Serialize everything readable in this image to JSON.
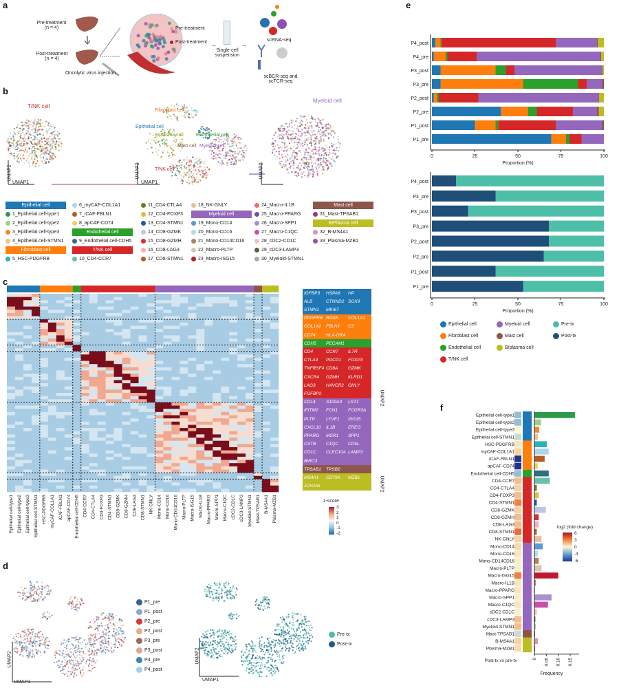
{
  "panel_labels": {
    "a": "a",
    "b": "b",
    "c": "c",
    "d": "d",
    "e": "e",
    "f": "f"
  },
  "colors": {
    "categories": {
      "Epithelial cell": "#1f77b4",
      "Fibroblast cell": "#ff7f0e",
      "Endothelial cell": "#2ca02c",
      "T/NK cell": "#d62728",
      "Myeloid cell": "#9467bd",
      "Mast cell": "#8c564b",
      "B/plasma cell": "#bcbd22"
    },
    "pre_tx": "#4dbfa8",
    "post_tx": "#1f4e79"
  },
  "panel_a": {
    "pre_treatment": "Pre-treatment",
    "pre_n": "(n = 4)",
    "post_treatment": "Post-treatment",
    "post_n": "(n = 4)",
    "injection": "Oncolytic virus injection",
    "legend_pre": "Pre-treatment",
    "legend_post": "Post-treatment",
    "suspension": "Single-cell suspension",
    "scrna": "scRNA-seq",
    "scbcr": "scBCR-seq and scTCR-seq"
  },
  "panel_b": {
    "tnk": "T/NK cell",
    "fibroblast": "Fibroblast cell",
    "epithelial": "Epithelial cell",
    "endothelial": "Endothelial cell",
    "bplasma": "B/plasma cell",
    "mast": "Mast cell",
    "myeloid": "Myeloid cell",
    "umap1": "UMAP1",
    "umap2": "UMAP2"
  },
  "legend": {
    "headers": {
      "epithelial": "Epithelial cell",
      "fibroblast": "Fibroblast cell",
      "endothelial": "Endothelial cell",
      "tnk": "T/NK cell",
      "myeloid": "Myeloid cell",
      "mast": "Mast cell",
      "bplasma": "B/Plasma cell"
    },
    "clusters": [
      {
        "label": "1_Epithelial cell-type1",
        "color": "#2e9a4a"
      },
      {
        "label": "2_Epithelial cell-type2",
        "color": "#9fd08a"
      },
      {
        "label": "3_Epithelial cell-type3",
        "color": "#f08a2a"
      },
      {
        "label": "4_Epithelial cell-STMN1",
        "color": "#f0c090"
      },
      {
        "label": "5_HSC-PDGFRB",
        "color": "#2bb0c0"
      },
      {
        "label": "6_myCAF-COL1A1",
        "color": "#a8d8ea"
      },
      {
        "label": "7_iCAF-FBLN1",
        "color": "#b85a22"
      },
      {
        "label": "8_apCAF-CD74",
        "color": "#f0d060"
      },
      {
        "label": "9_Endothelial cell-CDH5",
        "color": "#2f6e80"
      },
      {
        "label": "10_CD4-CCR7",
        "color": "#6bbfa8"
      },
      {
        "label": "11_CD4-CTLA4",
        "color": "#6f7a2a"
      },
      {
        "label": "12_CD4-FOXP3",
        "color": "#d8c040"
      },
      {
        "label": "13_CD4-STMN1",
        "color": "#2158a8"
      },
      {
        "label": "14_CD8-GZMK",
        "color": "#b8c8e8"
      },
      {
        "label": "15_CD8-GZMH",
        "color": "#d83030"
      },
      {
        "label": "16_CD8-LAG3",
        "color": "#f4b0b8"
      },
      {
        "label": "17_CD8-STMN1",
        "color": "#b06030"
      },
      {
        "label": "18_NK-GNLY",
        "color": "#e8c098"
      },
      {
        "label": "19_Mono-CD14",
        "color": "#5a9ad0"
      },
      {
        "label": "20_Mono-CD16",
        "color": "#b0dcef"
      },
      {
        "label": "21_Mono-CD14CD16",
        "color": "#b08058"
      },
      {
        "label": "22_Macro-PLTP",
        "color": "#d8c8b0"
      },
      {
        "label": "23_Macro-ISG15",
        "color": "#c01830"
      },
      {
        "label": "24_Macro-IL1B",
        "color": "#e87070"
      },
      {
        "label": "25_Macro-PPARG",
        "color": "#7050a8"
      },
      {
        "label": "26_Macro-SPP1",
        "color": "#a890d0"
      },
      {
        "label": "27_Macro-C1QC",
        "color": "#c850a8"
      },
      {
        "label": "28_cDC2-CD1C",
        "color": "#f0c0d0"
      },
      {
        "label": "29_cDC3-LAMP3",
        "color": "#5a6030"
      },
      {
        "label": "30_Myeloid-STMN1",
        "color": "#b8a898"
      },
      {
        "label": "31_Mast-TPSAB1",
        "color": "#9a3a7a"
      },
      {
        "label": "32_B-MS4A1",
        "color": "#d898b8"
      },
      {
        "label": "33_Plasma-MZB1",
        "color": "#9a50a8"
      }
    ]
  },
  "panel_c": {
    "columns": [
      "Epithelial cell-type1",
      "Epithelial cell-type2",
      "Epithelial cell-type3",
      "Epithelial cell-STMN1",
      "HSC-PDGFRB",
      "myCAF-COL1A1",
      "iCAF-FBLN1",
      "apCAF-CD74",
      "Endothelial cell-CDH5",
      "CD4-CCR7",
      "CD4-CTLA4",
      "CD4-FOXP3",
      "CD4-STMN1",
      "CD8-GZMK",
      "CD8-GZMH",
      "CD8-LAG3",
      "CD8-STMN1",
      "NK-GNLY",
      "Mono-CD14",
      "Mono-CD16",
      "Mono-CD14CD16",
      "Macro-PLTP",
      "Macro-ISG15",
      "Macro-IL1B",
      "Macro-PPARG",
      "Macro-SPP1",
      "Macro-C1QC",
      "cDC2-CD1C",
      "cDC3-LAMP3",
      "Myeloid-STMN1",
      "Mast-TPSAB1",
      "B-MS4A1",
      "Plasma-MZB1"
    ],
    "column_categories": [
      "Epithelial cell",
      "Epithelial cell",
      "Epithelial cell",
      "Epithelial cell",
      "Fibroblast cell",
      "Fibroblast cell",
      "Fibroblast cell",
      "Fibroblast cell",
      "Endothelial cell",
      "T/NK cell",
      "T/NK cell",
      "T/NK cell",
      "T/NK cell",
      "T/NK cell",
      "T/NK cell",
      "T/NK cell",
      "T/NK cell",
      "T/NK cell",
      "Myeloid cell",
      "Myeloid cell",
      "Myeloid cell",
      "Myeloid cell",
      "Myeloid cell",
      "Myeloid cell",
      "Myeloid cell",
      "Myeloid cell",
      "Myeloid cell",
      "Myeloid cell",
      "Myeloid cell",
      "Myeloid cell",
      "Mast cell",
      "B/plasma cell",
      "B/plasma cell"
    ],
    "gene_groups": [
      {
        "category": "Epithelial cell",
        "genes": [
          "IGFBP3",
          "HSPA6",
          "HP",
          "ALB",
          "CTNND2",
          "SOX9",
          "STMN1",
          "MKI67"
        ]
      },
      {
        "category": "Fibroblast cell",
        "genes": [
          "PDGFRB",
          "RGS5",
          "COL1A1",
          "COL1A2",
          "FBLN1",
          "C3",
          "CD74",
          "HLA-DRA"
        ]
      },
      {
        "category": "Endothelial cell",
        "genes": [
          "CDH5",
          "PECAM1"
        ]
      },
      {
        "category": "T/NK cell",
        "genes": [
          "CD4",
          "CCR7",
          "IL7R",
          "CTLA4",
          "PDCD1",
          "FOXP3",
          "TNFRSF4",
          "CD8A",
          "GZMK",
          "CXCR4",
          "GZMH",
          "KLRD1",
          "LAG3",
          "HAVCR2",
          "GNLY",
          "FGFBP2"
        ]
      },
      {
        "category": "Myeloid cell",
        "genes": [
          "CD14",
          "S100A9",
          "LST1",
          "IFITM2",
          "FCN1",
          "FCGR3A",
          "PLTP",
          "LYVE1",
          "ISG15",
          "CXCL10",
          "IL1B",
          "EREG",
          "PPARG",
          "MSR1",
          "SPP1",
          "CSTB",
          "C1QC",
          "CD5L",
          "CD1C",
          "CLEC10A",
          "LAMP3",
          "BIRC3"
        ]
      },
      {
        "category": "Mast cell",
        "genes": [
          "TPSAB1",
          "TPSB2"
        ]
      },
      {
        "category": "B/plasma cell",
        "genes": [
          "MS4A1",
          "CD79A",
          "MZB1",
          "JCHAIN"
        ]
      }
    ],
    "zscore_title": "z-score",
    "zscore_ticks": [
      "3",
      "2",
      "1",
      "0",
      "-1",
      "-2"
    ],
    "umap2_a": "UMAP2",
    "umap2_b": "UMAP2"
  },
  "panel_d": {
    "samples": [
      {
        "label": "P1_pre",
        "color": "#3b5f9a"
      },
      {
        "label": "P1_post",
        "color": "#8fa8d0"
      },
      {
        "label": "P2_pre",
        "color": "#d8383a"
      },
      {
        "label": "P2_post",
        "color": "#f0a888"
      },
      {
        "label": "P3_pre",
        "color": "#9a6a58"
      },
      {
        "label": "P3_post",
        "color": "#d8a898"
      },
      {
        "label": "P4_pre",
        "color": "#3a84b8"
      },
      {
        "label": "P4_post",
        "color": "#a8d0e8"
      }
    ],
    "groups": [
      {
        "label": "Pre-tx",
        "color": "#4dbfa8"
      },
      {
        "label": "Post-tx",
        "color": "#1f5a88"
      }
    ],
    "umap1": "UMAP1",
    "umap2": "UMAP2"
  },
  "chart_data": [
    {
      "type": "bar",
      "orientation": "horizontal",
      "stacked": true,
      "categories": [
        "P4_post",
        "P4_pre",
        "P3_post",
        "P3_pre",
        "P2_post",
        "P2_pre",
        "P1_post",
        "P1_pre"
      ],
      "series": [
        {
          "name": "Epithelial cell",
          "values": [
            2,
            1,
            5,
            5,
            1,
            40,
            25,
            69.5
          ]
        },
        {
          "name": "Fibroblast cell",
          "values": [
            3,
            7,
            32,
            48,
            2,
            16,
            12,
            8.5
          ]
        },
        {
          "name": "Endothelial cell",
          "values": [
            0.5,
            1,
            6,
            32,
            1,
            5,
            1.5,
            2
          ]
        },
        {
          "name": "T/NK cell",
          "values": [
            66.5,
            17,
            5,
            5,
            23,
            21,
            33.5,
            7
          ]
        },
        {
          "name": "Myeloid cell",
          "values": [
            24,
            72,
            51,
            9,
            70,
            14,
            27,
            13
          ]
        },
        {
          "name": "Mast cell",
          "values": [
            0.5,
            0.5,
            0.3,
            1,
            0.2,
            1,
            1,
            0
          ]
        },
        {
          "name": "B/plasma cell",
          "values": [
            3.5,
            1.5,
            0.7,
            0,
            2.8,
            3,
            0,
            0
          ]
        }
      ],
      "xlabel": "Proportion (%)",
      "xlim": [
        0,
        100
      ],
      "xticks": [
        "0",
        "25",
        "50",
        "75",
        "100"
      ]
    },
    {
      "type": "bar",
      "orientation": "horizontal",
      "stacked": true,
      "categories": [
        "P4_post",
        "P4_pre",
        "P3_post",
        "P3_pre",
        "P2_post",
        "P2_pre",
        "P1_post",
        "P1_pre"
      ],
      "series": [
        {
          "name": "Post-tx",
          "values": [
            14,
            37,
            21,
            68,
            68,
            65,
            37,
            53
          ]
        },
        {
          "name": "Pre-tx",
          "values": [
            86,
            63,
            79,
            32,
            32,
            35,
            63,
            47
          ]
        }
      ],
      "xlabel": "Proportion (%)",
      "xlim": [
        0,
        100
      ],
      "xticks": [
        "0",
        "25",
        "50",
        "75",
        "100"
      ],
      "legend": [
        "Epithelial cell",
        "Fibroblast cell",
        "Endothelial cell",
        "T/NK cell",
        "Myeloid cell",
        "Mast cell",
        "B/plasma cell",
        "Pre-tx",
        "Post-tx"
      ],
      "legend_position": "bottom"
    },
    {
      "type": "bar",
      "orientation": "horizontal",
      "categories": [
        "Epithelial cell-type1",
        "Epithelial cell-type2",
        "Epithelial cell-type3",
        "Epithelial cell-STMN1",
        "HSC-PDGFRB",
        "myCAF-COL1A1",
        "iCAF-FBLN1",
        "apCAF-CD74",
        "Endothelial cell-CDH5",
        "CD4-CCR7",
        "CD4-CTLA4",
        "CD4-FOXP3",
        "CD4-STMN1",
        "CD8-GZMK",
        "CD8-GZMH",
        "CD8-LAG3",
        "CD8-STMN1",
        "NK-GNLY",
        "Mono-CD14",
        "Mono-CD16",
        "Mono-CD14CD16",
        "Macro-PLTP",
        "Macro-ISG15",
        "Macro-IL1B",
        "Macro-PPARG",
        "Macro-SPP1",
        "Macro-C1QC",
        "cDC2-CD1C",
        "cDC3-LAMP3",
        "Myeloid-STMN1",
        "Mast-TPSAB1",
        "B-MS4A1",
        "Plasma-MZB1"
      ],
      "frequency": [
        0.17,
        0.028,
        0.02,
        0.015,
        0.052,
        0.06,
        0.043,
        0.014,
        0.06,
        0.065,
        0.01,
        0.018,
        0.01,
        0.048,
        0.018,
        0.018,
        0.01,
        0.03,
        0.035,
        0.015,
        0.018,
        0.03,
        0.1,
        0.006,
        0.002,
        0.072,
        0.057,
        0.01,
        0.004,
        0.005,
        0.003,
        0.015,
        0.003
      ],
      "log2_fold_change": [
        -2,
        -2,
        0,
        -1,
        0.5,
        1,
        -6,
        -6,
        -2,
        1.5,
        1,
        1.5,
        3,
        1,
        1.5,
        1.5,
        3.5,
        1,
        0.8,
        0.5,
        0.3,
        0.3,
        3,
        0.5,
        0.5,
        0.3,
        0.5,
        0.2,
        1.5,
        1.5,
        -1,
        1,
        0.8
      ],
      "xlabel": "Frequency",
      "xlim": [
        0,
        0.18
      ],
      "xticks": [
        "0",
        "0.05",
        "0.10",
        "0.15"
      ],
      "heat_label": "Post-tx vs pre-tx",
      "colorbar_title": "log2 (fold change)",
      "colorbar_ticks": [
        "6",
        "3",
        "0",
        "-3",
        "-6"
      ]
    }
  ]
}
